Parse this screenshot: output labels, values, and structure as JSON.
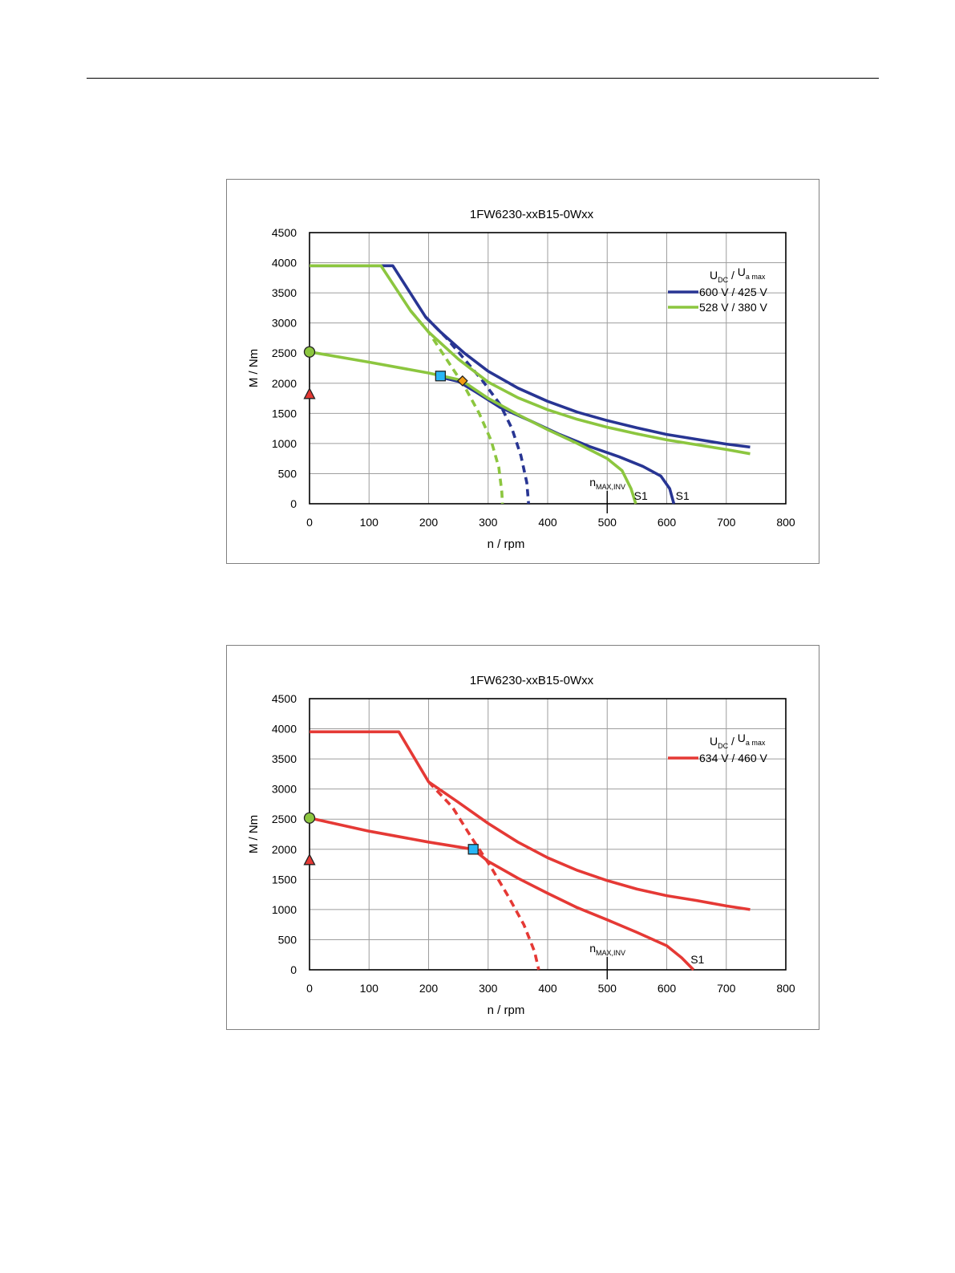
{
  "page": {},
  "chart_data": [
    {
      "type": "line",
      "title": "1FW6230-xxB15-0Wxx",
      "xlabel": "n / rpm",
      "ylabel": "M / Nm",
      "xlim": [
        0,
        800
      ],
      "ylim": [
        0,
        4500
      ],
      "x_ticks": [
        "0",
        "100",
        "200",
        "300",
        "400",
        "500",
        "600",
        "700",
        "800"
      ],
      "y_ticks": [
        "0",
        "500",
        "1000",
        "1500",
        "2000",
        "2500",
        "3000",
        "3500",
        "4000",
        "4500"
      ],
      "grid": true,
      "legend_placement": "top-right",
      "legend_header": {
        "u1": "U",
        "u1_sub": "DC",
        "sep": "/",
        "u2": "U",
        "u2_sub": "a max"
      },
      "annotations": {
        "n_max_main": "n",
        "n_max_sub": "MAX,INV",
        "n_max_x": 500,
        "s1_labels": [
          "S1",
          "S1"
        ]
      },
      "series": [
        {
          "name": "600 V / 425 V",
          "color": "#283593",
          "curves": [
            {
              "style": "solid",
              "points": [
                [
                  0,
                  3950
                ],
                [
                  140,
                  3950
                ],
                [
                  195,
                  3100
                ],
                [
                  220,
                  2850
                ],
                [
                  260,
                  2500
                ],
                [
                  300,
                  2200
                ],
                [
                  350,
                  1920
                ],
                [
                  400,
                  1700
                ],
                [
                  450,
                  1520
                ],
                [
                  500,
                  1380
                ],
                [
                  550,
                  1260
                ],
                [
                  600,
                  1150
                ],
                [
                  650,
                  1070
                ],
                [
                  700,
                  990
                ],
                [
                  740,
                  940
                ]
              ]
            },
            {
              "style": "dashed",
              "points": [
                [
                  195,
                  3100
                ],
                [
                  230,
                  2750
                ],
                [
                  260,
                  2400
                ],
                [
                  290,
                  2050
                ],
                [
                  320,
                  1650
                ],
                [
                  340,
                  1250
                ],
                [
                  355,
                  800
                ],
                [
                  365,
                  350
                ],
                [
                  368,
                  0
                ]
              ]
            },
            {
              "style": "solid",
              "points": [
                [
                  220,
                  2100
                ],
                [
                  250,
                  2030
                ],
                [
                  280,
                  1850
                ],
                [
                  320,
                  1600
                ],
                [
                  370,
                  1380
                ],
                [
                  420,
                  1150
                ],
                [
                  470,
                  950
                ],
                [
                  520,
                  780
                ],
                [
                  560,
                  620
                ],
                [
                  590,
                  460
                ],
                [
                  605,
                  250
                ],
                [
                  612,
                  0
                ]
              ]
            }
          ]
        },
        {
          "name": "528 V / 380 V",
          "color": "#8cc63f",
          "curves": [
            {
              "style": "solid",
              "points": [
                [
                  0,
                  3950
                ],
                [
                  120,
                  3950
                ],
                [
                  170,
                  3200
                ],
                [
                  200,
                  2850
                ],
                [
                  250,
                  2400
                ],
                [
                  300,
                  2020
                ],
                [
                  350,
                  1760
                ],
                [
                  400,
                  1560
                ],
                [
                  450,
                  1400
                ],
                [
                  500,
                  1270
                ],
                [
                  550,
                  1160
                ],
                [
                  600,
                  1060
                ],
                [
                  650,
                  980
                ],
                [
                  700,
                  900
                ],
                [
                  740,
                  830
                ]
              ]
            },
            {
              "style": "dashed",
              "points": [
                [
                  170,
                  3200
                ],
                [
                  200,
                  2850
                ],
                [
                  230,
                  2400
                ],
                [
                  260,
                  1950
                ],
                [
                  285,
                  1500
                ],
                [
                  305,
                  1050
                ],
                [
                  318,
                  600
                ],
                [
                  323,
                  200
                ],
                [
                  324,
                  0
                ]
              ]
            },
            {
              "style": "solid",
              "points": [
                [
                  0,
                  2520
                ],
                [
                  100,
                  2350
                ],
                [
                  200,
                  2170
                ],
                [
                  255,
                  2050
                ],
                [
                  300,
                  1750
                ],
                [
                  350,
                  1480
                ],
                [
                  400,
                  1230
                ],
                [
                  450,
                  1000
                ],
                [
                  500,
                  750
                ],
                [
                  525,
                  550
                ],
                [
                  540,
                  250
                ],
                [
                  548,
                  0
                ]
              ]
            }
          ]
        }
      ],
      "markers": [
        {
          "shape": "circle",
          "x": 0,
          "y": 2520,
          "color": "#8cc63f"
        },
        {
          "shape": "triangle",
          "x": 0,
          "y": 1820,
          "color": "#e53935"
        },
        {
          "shape": "square",
          "x": 220,
          "y": 2120,
          "color": "#29b6f6"
        },
        {
          "shape": "diamond",
          "x": 257,
          "y": 2040,
          "color": "#f39c12"
        }
      ]
    },
    {
      "type": "line",
      "title": "1FW6230-xxB15-0Wxx",
      "xlabel": "n / rpm",
      "ylabel": "M / Nm",
      "xlim": [
        0,
        800
      ],
      "ylim": [
        0,
        4500
      ],
      "x_ticks": [
        "0",
        "100",
        "200",
        "300",
        "400",
        "500",
        "600",
        "700",
        "800"
      ],
      "y_ticks": [
        "0",
        "500",
        "1000",
        "1500",
        "2000",
        "2500",
        "3000",
        "3500",
        "4000",
        "4500"
      ],
      "grid": true,
      "legend_placement": "top-right",
      "legend_header": {
        "u1": "U",
        "u1_sub": "DC",
        "sep": "/",
        "u2": "U",
        "u2_sub": "a max"
      },
      "annotations": {
        "n_max_main": "n",
        "n_max_sub": "MAX,INV",
        "n_max_x": 500,
        "s1_labels": [
          "S1"
        ]
      },
      "series": [
        {
          "name": "634 V / 460 V",
          "color": "#e53935",
          "curves": [
            {
              "style": "solid",
              "points": [
                [
                  0,
                  3950
                ],
                [
                  150,
                  3950
                ],
                [
                  200,
                  3120
                ],
                [
                  250,
                  2780
                ],
                [
                  300,
                  2430
                ],
                [
                  350,
                  2120
                ],
                [
                  400,
                  1860
                ],
                [
                  450,
                  1650
                ],
                [
                  500,
                  1480
                ],
                [
                  550,
                  1340
                ],
                [
                  600,
                  1230
                ],
                [
                  650,
                  1150
                ],
                [
                  700,
                  1060
                ],
                [
                  740,
                  1000
                ]
              ]
            },
            {
              "style": "dashed",
              "points": [
                [
                  200,
                  3120
                ],
                [
                  240,
                  2700
                ],
                [
                  275,
                  2150
                ],
                [
                  305,
                  1700
                ],
                [
                  335,
                  1200
                ],
                [
                  360,
                  750
                ],
                [
                  378,
                  300
                ],
                [
                  385,
                  0
                ]
              ]
            },
            {
              "style": "solid",
              "points": [
                [
                  0,
                  2520
                ],
                [
                  100,
                  2300
                ],
                [
                  200,
                  2120
                ],
                [
                  275,
                  2000
                ],
                [
                  300,
                  1800
                ],
                [
                  350,
                  1520
                ],
                [
                  400,
                  1270
                ],
                [
                  450,
                  1030
                ],
                [
                  500,
                  830
                ],
                [
                  550,
                  620
                ],
                [
                  600,
                  400
                ],
                [
                  625,
                  200
                ],
                [
                  645,
                  0
                ]
              ]
            }
          ]
        }
      ],
      "markers": [
        {
          "shape": "circle",
          "x": 0,
          "y": 2520,
          "color": "#8cc63f"
        },
        {
          "shape": "triangle",
          "x": 0,
          "y": 1820,
          "color": "#e53935"
        },
        {
          "shape": "square",
          "x": 275,
          "y": 2000,
          "color": "#29b6f6"
        }
      ]
    }
  ]
}
